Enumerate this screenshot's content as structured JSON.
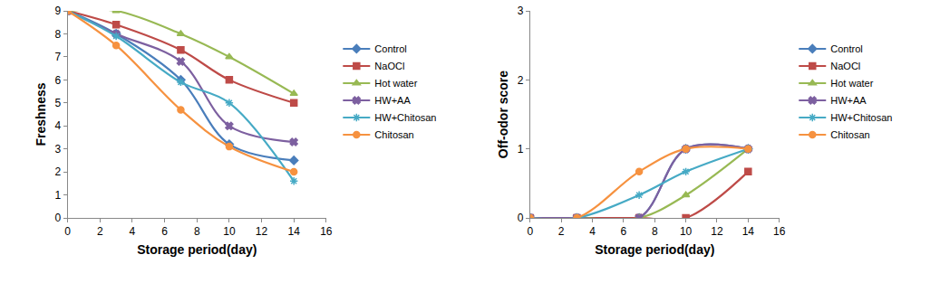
{
  "chart_data": [
    {
      "type": "line",
      "x_label": "Storage period(day)",
      "y_label": "Freshness",
      "x": [
        0,
        3,
        7,
        10,
        14
      ],
      "xlim": [
        0,
        16
      ],
      "xticks": [
        0,
        2,
        4,
        6,
        8,
        10,
        12,
        14,
        16
      ],
      "ylim": [
        0,
        9
      ],
      "yticks": [
        0,
        1,
        2,
        3,
        4,
        5,
        6,
        7,
        8,
        9
      ],
      "grid": false,
      "legend": "right",
      "series": [
        {
          "name": "Control",
          "color": "#4a7ebb",
          "marker": "diamond",
          "values": [
            9,
            8.0,
            6.0,
            3.2,
            2.5
          ]
        },
        {
          "name": "NaOCl",
          "color": "#be4b48",
          "marker": "square",
          "values": [
            9,
            8.4,
            7.3,
            6.0,
            5.0
          ]
        },
        {
          "name": "Hot water",
          "color": "#98b954",
          "marker": "triangle-up",
          "values": [
            9,
            9.0,
            8.0,
            7.0,
            5.4
          ]
        },
        {
          "name": "HW+AA",
          "color": "#7d60a0",
          "marker": "x",
          "values": [
            9,
            8.0,
            6.8,
            4.0,
            3.3
          ]
        },
        {
          "name": "HW+Chitosan",
          "color": "#46aac5",
          "marker": "asterisk",
          "values": [
            9,
            7.9,
            5.9,
            5.0,
            1.6
          ]
        },
        {
          "name": "Chitosan",
          "color": "#f69240",
          "marker": "circle",
          "values": [
            9,
            7.5,
            4.7,
            3.1,
            2.0
          ]
        }
      ]
    },
    {
      "type": "line",
      "x_label": "Storage period(day)",
      "y_label": "Off-odor score",
      "x": [
        0,
        3,
        7,
        10,
        14
      ],
      "xlim": [
        0,
        16
      ],
      "xticks": [
        0,
        2,
        4,
        6,
        8,
        10,
        12,
        14,
        16
      ],
      "ylim": [
        0,
        3
      ],
      "yticks": [
        0,
        1,
        2,
        3
      ],
      "grid": false,
      "legend": "right",
      "series": [
        {
          "name": "Control",
          "color": "#4a7ebb",
          "marker": "diamond",
          "values": [
            0,
            0,
            0,
            1,
            1
          ]
        },
        {
          "name": "NaOCl",
          "color": "#be4b48",
          "marker": "square",
          "values": [
            0,
            0,
            0,
            0,
            0.67
          ]
        },
        {
          "name": "Hot water",
          "color": "#98b954",
          "marker": "triangle-up",
          "values": [
            0,
            0,
            0,
            0.33,
            1
          ]
        },
        {
          "name": "HW+AA",
          "color": "#7d60a0",
          "marker": "x",
          "values": [
            0,
            0,
            0,
            1,
            1
          ]
        },
        {
          "name": "HW+Chitosan",
          "color": "#46aac5",
          "marker": "asterisk",
          "values": [
            0,
            0,
            0.33,
            0.67,
            1
          ]
        },
        {
          "name": "Chitosan",
          "color": "#f69240",
          "marker": "circle",
          "values": [
            0,
            0,
            0.67,
            1,
            1
          ]
        }
      ]
    }
  ]
}
